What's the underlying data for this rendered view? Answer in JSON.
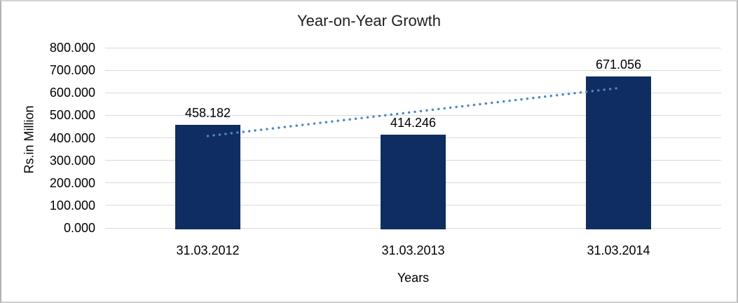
{
  "chart_data": {
    "type": "bar",
    "title": "Year-on-Year Growth",
    "xlabel": "Years",
    "ylabel": "Rs.in Million",
    "categories": [
      "31.03.2012",
      "31.03.2013",
      "31.03.2014"
    ],
    "values": [
      458.182,
      414.246,
      671.056
    ],
    "value_labels": [
      "458.182",
      "414.246",
      "671.056"
    ],
    "ylim": [
      0,
      800
    ],
    "ytick_step": 100,
    "ytick_labels": [
      "0.000",
      "100.000",
      "200.000",
      "300.000",
      "400.000",
      "500.000",
      "600.000",
      "700.000",
      "800.000"
    ],
    "grid": true,
    "legend": "none",
    "trendline": {
      "type": "linear",
      "style": "dotted",
      "span": "first-to-last-category"
    },
    "colors": {
      "bar": "#0f2d61",
      "trendline": "#4f86c6",
      "gridline": "#d9d9d9",
      "text": "#000000",
      "title_text": "#1f1f1f",
      "frame_border": "#c6c6c6",
      "background": "#ffffff"
    }
  }
}
